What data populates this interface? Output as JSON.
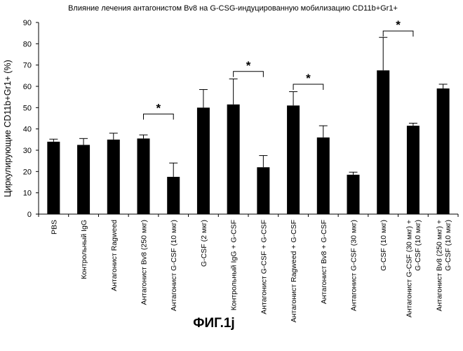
{
  "chart_data": {
    "type": "bar",
    "title": "Влияние лечения антагонистом Bv8 на G-CSG-индуцированную мобилизацию CD11b+Gr1+",
    "ylabel": "Циркулирующие CD11b+Gr1+ (%)",
    "xlabel": "",
    "ylim": [
      0,
      90
    ],
    "yticks": [
      0,
      10,
      20,
      30,
      40,
      50,
      60,
      70,
      80,
      90
    ],
    "grid": false,
    "categories": [
      [
        "PBS"
      ],
      [
        "Контрольный IgG"
      ],
      [
        "Антагонист Ragweed"
      ],
      [
        "Антагонист Bv8 (250 мкг)"
      ],
      [
        "Антагонист G-CSF (10 мкг)"
      ],
      [
        "G-CSF (2 мкг)"
      ],
      [
        "Контрольный IgG + G-CSF"
      ],
      [
        "Антагонист G-CSF + G-CSF"
      ],
      [
        "Антагонист Ragweed + G-CSF"
      ],
      [
        "Антагонист Bv8 + G-CSF"
      ],
      [
        "Антагонист G-CSF (30 мкг)"
      ],
      [
        "G-CSF (10 мкг)"
      ],
      [
        "Антагонист G-CSF (30 мкг) +",
        "G-CSF (10 мкг)"
      ],
      [
        "Антагонист Bv8 (250 мкг) +",
        "G-CSF (10 мкг)"
      ]
    ],
    "values": [
      34,
      32.5,
      35,
      35.5,
      17.5,
      50,
      51.5,
      22,
      51,
      36,
      18.5,
      67.5,
      41.5,
      59
    ],
    "errors": [
      1.2,
      3,
      3,
      1.7,
      6.5,
      8.5,
      12,
      5.5,
      6.5,
      5.5,
      1.2,
      15.5,
      1.2,
      2
    ],
    "significance": [
      {
        "from": 3,
        "to": 4,
        "level": 47,
        "label": "*"
      },
      {
        "from": 6,
        "to": 7,
        "level": 67,
        "label": "*"
      },
      {
        "from": 8,
        "to": 9,
        "level": 61,
        "label": "*"
      },
      {
        "from": 11,
        "to": 12,
        "level": 86,
        "label": "*"
      }
    ]
  },
  "figure_label": "ФИГ.1j"
}
